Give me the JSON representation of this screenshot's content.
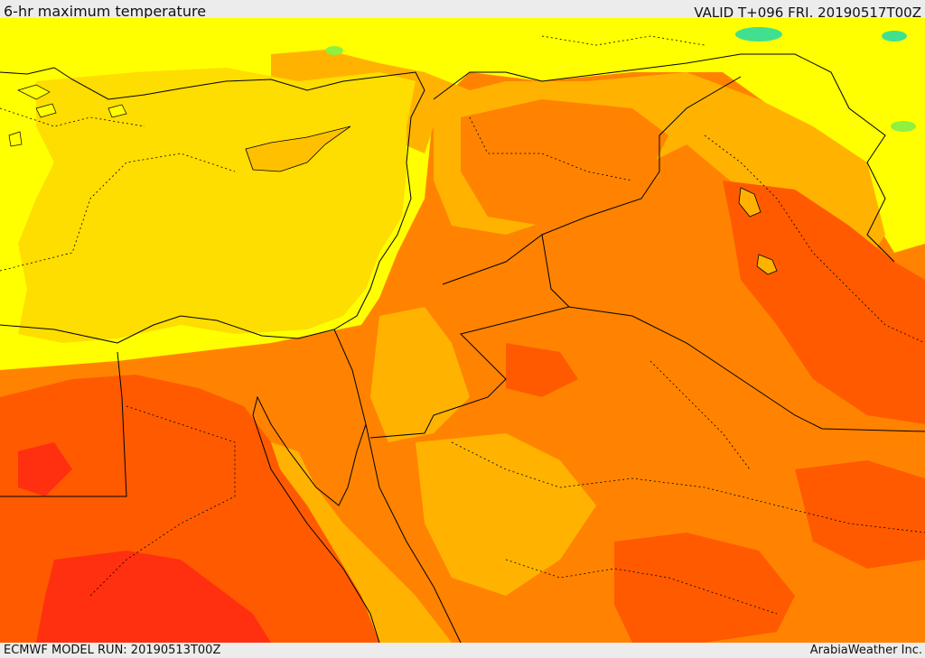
{
  "header": {
    "title": "6-hr maximum temperature",
    "valid": "VALID T+096 FRI. 20190517T00Z"
  },
  "footer": {
    "model_run": "ECMWF MODEL RUN: 20190513T00Z",
    "provider": "ArabiaWeather Inc."
  },
  "map": {
    "colors": {
      "sea": "#fedd00",
      "coast_land": "#ffff00",
      "warm": "#ffb300",
      "hot": "#ff8300",
      "very_hot": "#ff5a00",
      "extreme": "#ff3010",
      "cool_green": "#90f040",
      "cold_cyan": "#40e090",
      "pale_yellow": "#ffff60",
      "border_line": "#000000"
    }
  }
}
